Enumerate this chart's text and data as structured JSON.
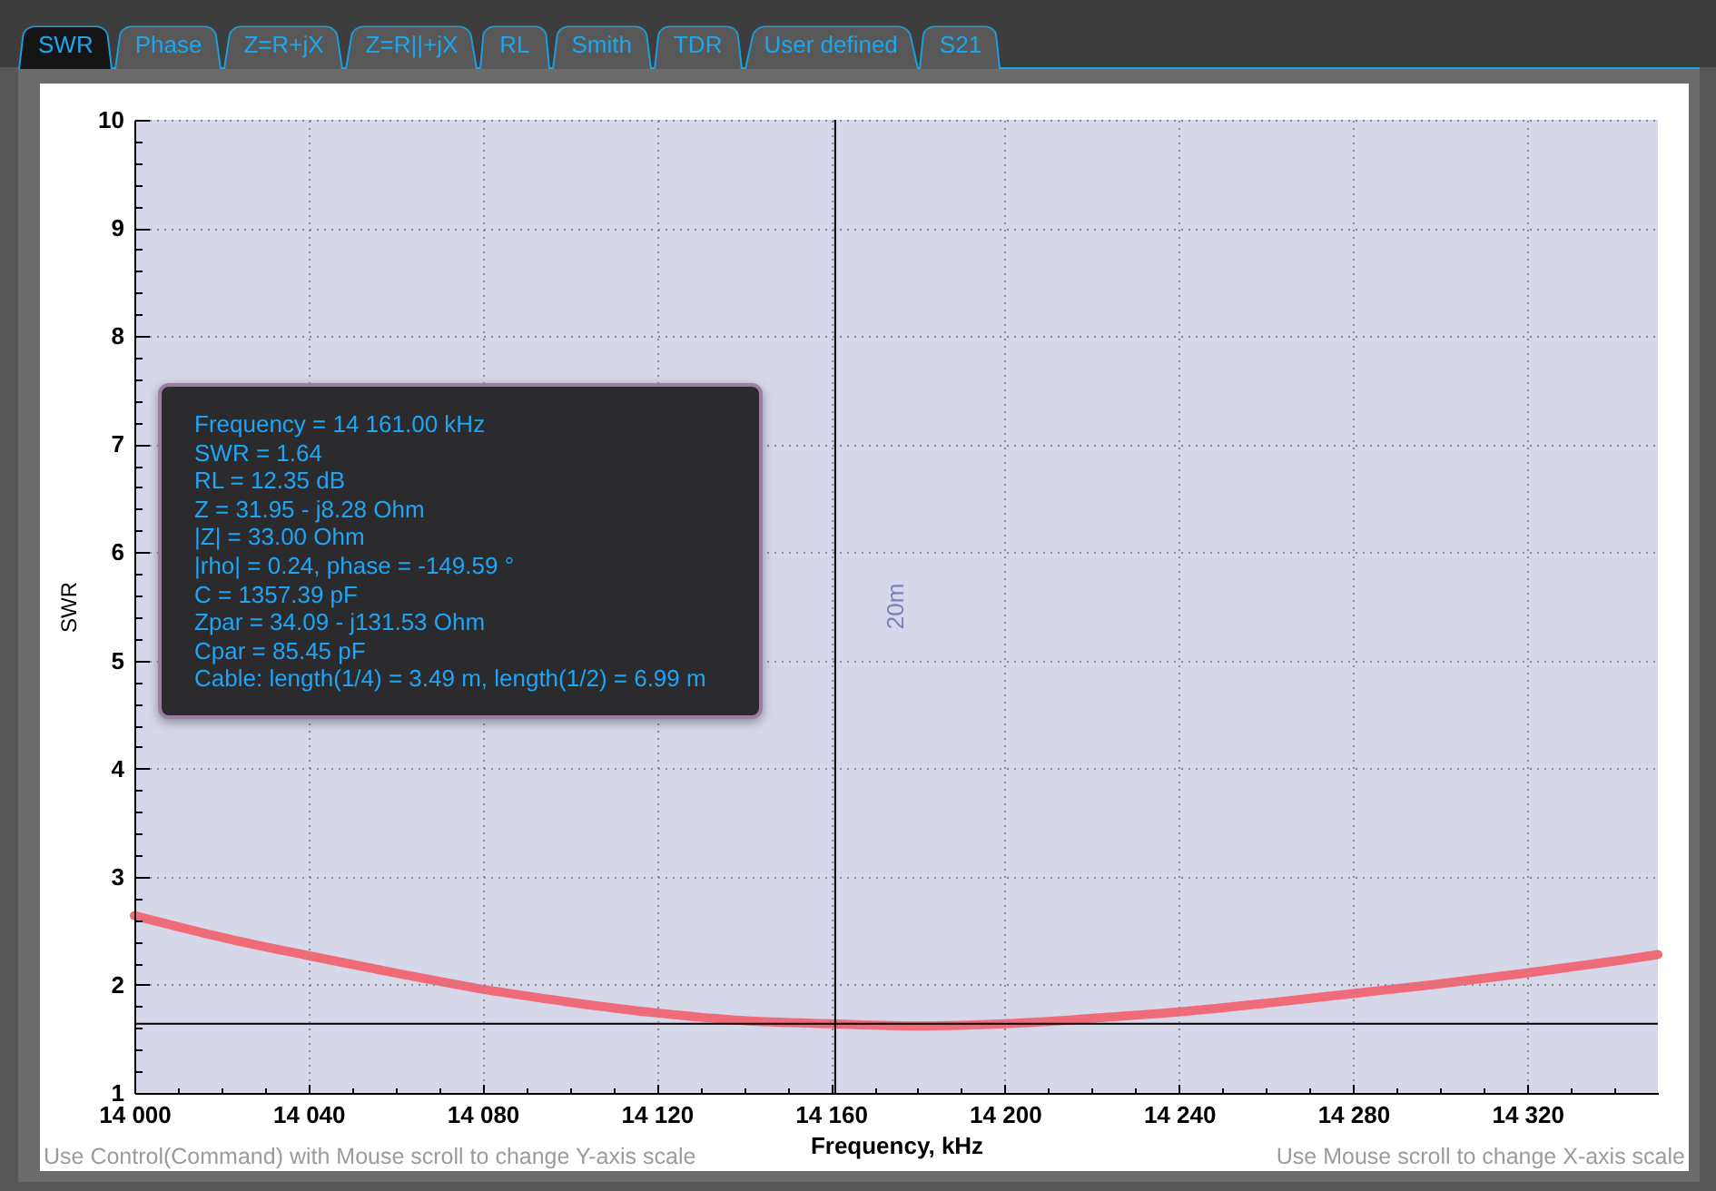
{
  "chart_data": {
    "type": "line",
    "xlabel": "Frequency, kHz",
    "ylabel": "SWR",
    "x": [
      14000,
      14020,
      14040,
      14060,
      14080,
      14100,
      14120,
      14140,
      14160,
      14180,
      14200,
      14220,
      14240,
      14260,
      14280,
      14300,
      14320,
      14340,
      14350
    ],
    "values": [
      2.64,
      2.44,
      2.27,
      2.11,
      1.96,
      1.84,
      1.74,
      1.67,
      1.64,
      1.62,
      1.64,
      1.69,
      1.75,
      1.83,
      1.92,
      2.01,
      2.11,
      2.22,
      2.28
    ],
    "color": "#ef6b78",
    "xlim": [
      14000,
      14350
    ],
    "xticks": [
      {
        "value": 14000,
        "label": "14 000"
      },
      {
        "value": 14010,
        "label": null
      },
      {
        "value": 14020,
        "label": null
      },
      {
        "value": 14030,
        "label": null
      },
      {
        "value": 14040,
        "label": "14 040"
      },
      {
        "value": 14050,
        "label": null
      },
      {
        "value": 14060,
        "label": null
      },
      {
        "value": 14070,
        "label": null
      },
      {
        "value": 14080,
        "label": "14 080"
      },
      {
        "value": 14090,
        "label": null
      },
      {
        "value": 14100,
        "label": null
      },
      {
        "value": 14110,
        "label": null
      },
      {
        "value": 14120,
        "label": "14 120"
      },
      {
        "value": 14130,
        "label": null
      },
      {
        "value": 14140,
        "label": null
      },
      {
        "value": 14150,
        "label": null
      },
      {
        "value": 14160,
        "label": "14 160"
      },
      {
        "value": 14170,
        "label": null
      },
      {
        "value": 14180,
        "label": null
      },
      {
        "value": 14190,
        "label": null
      },
      {
        "value": 14200,
        "label": "14 200"
      },
      {
        "value": 14210,
        "label": null
      },
      {
        "value": 14220,
        "label": null
      },
      {
        "value": 14230,
        "label": null
      },
      {
        "value": 14240,
        "label": "14 240"
      },
      {
        "value": 14250,
        "label": null
      },
      {
        "value": 14260,
        "label": null
      },
      {
        "value": 14270,
        "label": null
      },
      {
        "value": 14280,
        "label": "14 280"
      },
      {
        "value": 14290,
        "label": null
      },
      {
        "value": 14300,
        "label": null
      },
      {
        "value": 14310,
        "label": null
      },
      {
        "value": 14320,
        "label": "14 320"
      },
      {
        "value": 14330,
        "label": null
      },
      {
        "value": 14340,
        "label": null
      }
    ],
    "ylim": [
      1,
      10
    ],
    "yticks": [
      1,
      {
        "value": 1.2,
        "label": null
      },
      {
        "value": 1.4,
        "label": null
      },
      {
        "value": 1.6,
        "label": null
      },
      {
        "value": 1.8,
        "label": null
      },
      2,
      {
        "value": 2.2,
        "label": null
      },
      {
        "value": 2.4,
        "label": null
      },
      {
        "value": 2.6,
        "label": null
      },
      {
        "value": 2.8,
        "label": null
      },
      3,
      {
        "value": 3.2,
        "label": null
      },
      {
        "value": 3.4,
        "label": null
      },
      {
        "value": 3.6,
        "label": null
      },
      {
        "value": 3.8,
        "label": null
      },
      4,
      {
        "value": 4.2,
        "label": null
      },
      {
        "value": 4.4,
        "label": null
      },
      {
        "value": 4.6,
        "label": null
      },
      {
        "value": 4.8,
        "label": null
      },
      5,
      {
        "value": 5.2,
        "label": null
      },
      {
        "value": 5.4,
        "label": null
      },
      {
        "value": 5.6,
        "label": null
      },
      {
        "value": 5.8,
        "label": null
      },
      6,
      {
        "value": 6.2,
        "label": null
      },
      {
        "value": 6.4,
        "label": null
      },
      {
        "value": 6.6,
        "label": null
      },
      {
        "value": 6.8,
        "label": null
      },
      7,
      {
        "value": 7.2,
        "label": null
      },
      {
        "value": 7.4,
        "label": null
      },
      {
        "value": 7.6,
        "label": null
      },
      {
        "value": 7.8,
        "label": null
      },
      8,
      {
        "value": 8.2,
        "label": null
      },
      {
        "value": 8.4,
        "label": null
      },
      {
        "value": 8.6,
        "label": null
      },
      {
        "value": 8.8,
        "label": null
      },
      9,
      {
        "value": 9.2,
        "label": null
      },
      {
        "value": 9.4,
        "label": null
      },
      {
        "value": 9.6,
        "label": null
      },
      {
        "value": 9.8,
        "label": null
      },
      10
    ],
    "grid": true,
    "bands": [
      {
        "axis": "x",
        "from": 14000,
        "to": 14350,
        "label": "20m",
        "color": "#d6d7e8"
      }
    ],
    "ref_lines": [
      {
        "axis": "x",
        "value": 14161,
        "color": "#000000"
      },
      {
        "axis": "y",
        "value": 1.64,
        "color": "#000000"
      }
    ],
    "annotations": [
      "SWR",
      "Phase",
      "Z=R+jX",
      "Z=R||+jX",
      "RL",
      "Smith",
      "TDR",
      "User defined",
      "S21",
      "Frequency = 14 161.00 kHz\nSWR = 1.64\nRL = 12.35 dB\nZ = 31.95 - j8.28 Ohm\n|Z| = 33.00 Ohm\n|rho| = 0.24, phase = -149.59 °\nC = 1357.39 pF\nZpar = 34.09 - j131.53 Ohm\nCpar = 85.45 pF\nCable: length(1/4) = 3.49 m, length(1/2) = 6.99 m",
      "Use Control(Command) with Mouse scroll to change Y-axis scale",
      "Use Mouse scroll to change X-axis scale"
    ]
  }
}
